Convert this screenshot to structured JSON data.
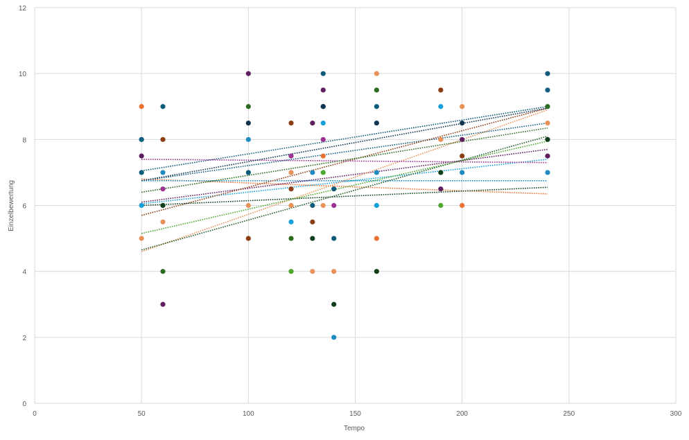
{
  "chart_data": {
    "type": "scatter",
    "title": "",
    "xlabel": "Tempo",
    "ylabel": "Einzelbewertung",
    "xlim": [
      0,
      300
    ],
    "ylim": [
      0,
      12
    ],
    "xticks": [
      0,
      50,
      100,
      150,
      200,
      250,
      300
    ],
    "yticks": [
      0,
      2,
      4,
      6,
      8,
      10,
      12
    ],
    "grid": true,
    "legend": "none",
    "series": [
      {
        "name": "orange",
        "color": "#E97132",
        "points": [
          [
            50,
            9
          ],
          [
            135,
            7.5
          ],
          [
            160,
            5
          ],
          [
            200,
            6
          ]
        ],
        "trend": [
          [
            50,
            6.8
          ],
          [
            240,
            6.35
          ]
        ]
      },
      {
        "name": "blue",
        "color": "#1F8BC0",
        "points": [
          [
            50,
            8
          ],
          [
            60,
            7
          ],
          [
            100,
            8
          ],
          [
            130,
            7
          ],
          [
            140,
            2
          ],
          [
            160,
            7
          ],
          [
            200,
            7
          ],
          [
            240,
            7
          ]
        ],
        "trend": [
          [
            50,
            6.75
          ],
          [
            240,
            6.75
          ]
        ]
      },
      {
        "name": "purple",
        "color": "#5F1E5F",
        "points": [
          [
            50,
            7.5
          ],
          [
            60,
            3
          ],
          [
            100,
            10
          ],
          [
            130,
            8.5
          ],
          [
            135,
            9.5
          ],
          [
            190,
            6.5
          ],
          [
            200,
            8
          ],
          [
            240,
            7.5
          ]
        ],
        "trend": [
          [
            50,
            6.1
          ],
          [
            240,
            7.7
          ]
        ]
      },
      {
        "name": "teal",
        "color": "#0E5A7A",
        "points": [
          [
            50,
            7
          ],
          [
            60,
            9
          ],
          [
            100,
            7
          ],
          [
            130,
            6
          ],
          [
            135,
            10
          ],
          [
            140,
            6.5
          ],
          [
            140,
            5
          ],
          [
            160,
            9
          ],
          [
            240,
            10
          ]
        ],
        "trend": [
          [
            50,
            7.05
          ],
          [
            240,
            9.0
          ]
        ]
      },
      {
        "name": "dark-teal",
        "color": "#156082",
        "points": [
          [
            50,
            8
          ],
          [
            240,
            9.5
          ]
        ],
        "trend": [
          [
            50,
            6.75
          ],
          [
            240,
            8.5
          ]
        ]
      },
      {
        "name": "light-blue",
        "color": "#16A0D8",
        "points": [
          [
            50,
            6
          ],
          [
            120,
            5.5
          ],
          [
            135,
            8.5
          ],
          [
            160,
            6
          ],
          [
            190,
            9
          ]
        ],
        "trend": [
          [
            50,
            6.05
          ],
          [
            240,
            7.4
          ]
        ]
      },
      {
        "name": "light-orange",
        "color": "#E8925A",
        "points": [
          [
            50,
            5
          ],
          [
            60,
            5.5
          ],
          [
            100,
            6
          ],
          [
            120,
            7
          ],
          [
            120,
            6
          ],
          [
            130,
            4
          ],
          [
            135,
            6
          ],
          [
            140,
            4
          ],
          [
            160,
            10
          ],
          [
            190,
            8
          ],
          [
            200,
            9
          ],
          [
            240,
            8.5
          ]
        ],
        "trend": [
          [
            50,
            4.6
          ],
          [
            240,
            8.9
          ]
        ]
      },
      {
        "name": "brown",
        "color": "#8B3E14",
        "points": [
          [
            60,
            8
          ],
          [
            100,
            5
          ],
          [
            120,
            8.5
          ],
          [
            120,
            6.5
          ],
          [
            130,
            5.5
          ],
          [
            190,
            9.5
          ],
          [
            200,
            7.5
          ]
        ],
        "trend": [
          [
            50,
            5.7
          ],
          [
            240,
            8.95
          ]
        ]
      },
      {
        "name": "magenta",
        "color": "#9B3294",
        "points": [
          [
            60,
            6.5
          ],
          [
            120,
            7.5
          ],
          [
            135,
            8
          ],
          [
            140,
            6
          ]
        ],
        "trend": [
          [
            50,
            7.4
          ],
          [
            240,
            7.3
          ]
        ]
      },
      {
        "name": "dark-green",
        "color": "#0F3F1A",
        "points": [
          [
            60,
            6
          ],
          [
            130,
            5
          ],
          [
            135,
            9
          ],
          [
            140,
            3
          ],
          [
            160,
            4
          ],
          [
            190,
            7
          ],
          [
            240,
            8
          ]
        ],
        "trend": [
          [
            50,
            6.0
          ],
          [
            240,
            6.55
          ]
        ]
      },
      {
        "name": "green",
        "color": "#2E6B22",
        "points": [
          [
            60,
            4
          ],
          [
            100,
            9
          ],
          [
            120,
            5
          ],
          [
            160,
            9.5
          ],
          [
            240,
            9
          ]
        ],
        "trend": [
          [
            50,
            6.4
          ],
          [
            240,
            8.35
          ]
        ]
      },
      {
        "name": "forest-green",
        "color": "#1E5A28",
        "points": [],
        "trend": [
          [
            50,
            4.65
          ],
          [
            240,
            8.1
          ]
        ]
      },
      {
        "name": "navy",
        "color": "#0F3550",
        "points": [
          [
            100,
            8.5
          ],
          [
            135,
            9
          ],
          [
            160,
            8.5
          ],
          [
            200,
            8.5
          ]
        ],
        "trend": [
          [
            50,
            6.75
          ],
          [
            240,
            8.95
          ]
        ]
      },
      {
        "name": "light-green",
        "color": "#4EA72E",
        "points": [
          [
            120,
            4
          ],
          [
            135,
            7
          ],
          [
            190,
            6
          ]
        ],
        "trend": [
          [
            50,
            5.15
          ],
          [
            240,
            7.95
          ]
        ]
      }
    ]
  }
}
